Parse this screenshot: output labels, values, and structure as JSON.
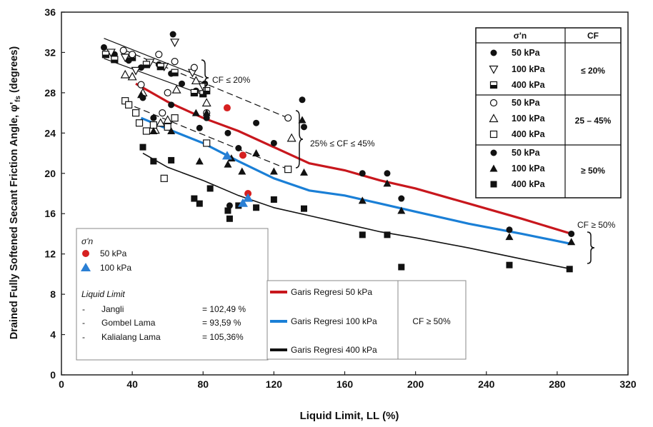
{
  "chart_data": {
    "type": "scatter",
    "title": "",
    "xlabel": "Liquid Limit, LL (%)",
    "ylabel_main": "Drained Fully Softened Secant Friction Angle, φ'",
    "ylabel_sub": "fs",
    "ylabel_unit": " (degrees)",
    "xlim": [
      0,
      320
    ],
    "ylim": [
      0,
      36
    ],
    "xticks": [
      0,
      40,
      80,
      120,
      160,
      200,
      240,
      280,
      320
    ],
    "yticks": [
      0,
      4,
      8,
      12,
      16,
      20,
      24,
      28,
      32,
      36
    ],
    "grid": false,
    "annotations": {
      "cf_le_20": "CF ≤ 20%",
      "cf_25_45": "25% ≤ CF ≤ 45%",
      "cf_ge_50": "CF ≥ 50%"
    },
    "legend_table": {
      "header_sigma": "σ'n",
      "header_cf": "CF",
      "rows": [
        {
          "marker": "circle-filled",
          "label": "50 kPa"
        },
        {
          "marker": "triangle-down-open",
          "label": "100 kPa"
        },
        {
          "marker": "square-half",
          "label": "400 kPa"
        },
        {
          "marker": "circle-open",
          "label": "50 kPa"
        },
        {
          "marker": "triangle-up-open",
          "label": "100 kPa"
        },
        {
          "marker": "square-open",
          "label": "400 kPa"
        },
        {
          "marker": "circle-filled",
          "label": "50 kPa"
        },
        {
          "marker": "triangle-up-filled",
          "label": "100 kPa"
        },
        {
          "marker": "square-filled",
          "label": "400 kPa"
        }
      ],
      "cf_groups": [
        "≤ 20%",
        "25 – 45%",
        "≥ 50%"
      ]
    },
    "legend_local": {
      "sigma_label": "σ'n",
      "items": [
        {
          "marker": "red-circle",
          "label": "50 kPa",
          "color": "#d62020"
        },
        {
          "marker": "blue-triangle",
          "label": "100 kPa",
          "color": "#2a7fd4"
        }
      ],
      "liquid_limit_title": "Liquid Limit",
      "samples": [
        {
          "dash": "-",
          "name": "Jangli",
          "value": "= 102,49 %"
        },
        {
          "dash": "-",
          "name": "Gombel Lama",
          "value": "= 93,59 %"
        },
        {
          "dash": "-",
          "name": "Kalialang Lama",
          "value": "= 105,36%"
        }
      ]
    },
    "legend_regression": {
      "items": [
        {
          "label": "Garis Regresi 50 kPa",
          "color": "#c8171d"
        },
        {
          "label": "Garis Regresi 100 kPa",
          "color": "#1a7fd6"
        },
        {
          "label": "Garis Regresi 400 kPa",
          "color": "#111111"
        }
      ],
      "cf_label": "CF ≥ 50%"
    },
    "series": [
      {
        "marker": "circle-filled",
        "color": "#111111",
        "points": [
          [
            24,
            32.5
          ],
          [
            30,
            31.8
          ],
          [
            38,
            31.2
          ],
          [
            45,
            30.5
          ],
          [
            55,
            30.8
          ],
          [
            62,
            29.9
          ],
          [
            68,
            28.9
          ],
          [
            76,
            28.2
          ],
          [
            81,
            28.9
          ],
          [
            63,
            33.8
          ]
        ]
      },
      {
        "marker": "triangle-down-open",
        "color": "#111111",
        "points": [
          [
            28,
            32.0
          ],
          [
            36,
            31.5
          ],
          [
            42,
            30.2
          ],
          [
            50,
            31.0
          ],
          [
            58,
            30.6
          ],
          [
            64,
            33.0
          ],
          [
            74,
            30.0
          ],
          [
            80,
            28.6
          ]
        ]
      },
      {
        "marker": "square-half",
        "color": "#111111",
        "points": [
          [
            25,
            31.8
          ],
          [
            30,
            31.3
          ],
          [
            40,
            31.5
          ],
          [
            48,
            30.8
          ],
          [
            56,
            30.6
          ],
          [
            64,
            30.0
          ],
          [
            75,
            28.0
          ],
          [
            80,
            27.9
          ],
          [
            82,
            28.2
          ]
        ]
      },
      {
        "marker": "circle-open",
        "color": "#111111",
        "points": [
          [
            35,
            32.2
          ],
          [
            40,
            31.8
          ],
          [
            45,
            28.8
          ],
          [
            55,
            31.8
          ],
          [
            57,
            26.0
          ],
          [
            60,
            28.0
          ],
          [
            64,
            31.1
          ],
          [
            75,
            30.5
          ],
          [
            82,
            26.0
          ],
          [
            128,
            25.5
          ]
        ]
      },
      {
        "marker": "triangle-up-open",
        "color": "#111111",
        "points": [
          [
            36,
            29.8
          ],
          [
            40,
            29.6
          ],
          [
            46,
            28.0
          ],
          [
            53,
            24.3
          ],
          [
            56,
            25.0
          ],
          [
            60,
            25.3
          ],
          [
            65,
            28.3
          ],
          [
            76,
            29.2
          ],
          [
            82,
            27.0
          ],
          [
            130,
            23.5
          ]
        ]
      },
      {
        "marker": "square-open",
        "color": "#111111",
        "points": [
          [
            36,
            27.2
          ],
          [
            38,
            26.8
          ],
          [
            42,
            26.0
          ],
          [
            44,
            25.0
          ],
          [
            48,
            24.2
          ],
          [
            52,
            24.8
          ],
          [
            60,
            24.6
          ],
          [
            64,
            25.5
          ],
          [
            58,
            19.5
          ],
          [
            82,
            23.0
          ],
          [
            128,
            20.4
          ]
        ]
      },
      {
        "marker": "circle-filled",
        "color": "#111111",
        "points": [
          [
            46,
            27.5
          ],
          [
            52,
            25.5
          ],
          [
            62,
            26.8
          ],
          [
            78,
            24.5
          ],
          [
            82,
            25.5
          ],
          [
            94,
            24.0
          ],
          [
            95,
            16.8
          ],
          [
            100,
            22.5
          ],
          [
            110,
            25.0
          ],
          [
            120,
            23.0
          ],
          [
            136,
            27.3
          ],
          [
            137,
            24.6
          ],
          [
            170,
            20.0
          ],
          [
            184,
            20.0
          ],
          [
            192,
            17.5
          ],
          [
            253,
            14.4
          ],
          [
            288,
            14.0
          ]
        ]
      },
      {
        "marker": "triangle-up-filled",
        "color": "#111111",
        "points": [
          [
            45,
            27.8
          ],
          [
            52,
            24.2
          ],
          [
            62,
            24.2
          ],
          [
            76,
            26.0
          ],
          [
            78,
            21.2
          ],
          [
            82,
            26.0
          ],
          [
            94,
            20.9
          ],
          [
            96,
            21.5
          ],
          [
            102,
            20.2
          ],
          [
            110,
            22.0
          ],
          [
            120,
            20.2
          ],
          [
            136,
            25.3
          ],
          [
            137,
            20.1
          ],
          [
            170,
            17.3
          ],
          [
            184,
            19.0
          ],
          [
            192,
            16.3
          ],
          [
            253,
            13.7
          ],
          [
            288,
            13.2
          ]
        ]
      },
      {
        "marker": "square-filled",
        "color": "#111111",
        "points": [
          [
            46,
            22.6
          ],
          [
            52,
            21.2
          ],
          [
            62,
            21.3
          ],
          [
            75,
            17.5
          ],
          [
            78,
            17.0
          ],
          [
            84,
            18.5
          ],
          [
            94,
            16.3
          ],
          [
            95,
            15.5
          ],
          [
            100,
            16.8
          ],
          [
            110,
            16.6
          ],
          [
            120,
            17.4
          ],
          [
            137,
            16.5
          ],
          [
            170,
            13.9
          ],
          [
            184,
            13.9
          ],
          [
            192,
            10.7
          ],
          [
            253,
            10.9
          ],
          [
            287,
            10.5
          ]
        ]
      },
      {
        "marker": "red-circle",
        "color": "#d62020",
        "points": [
          [
            93.59,
            26.5
          ],
          [
            102.49,
            21.8
          ],
          [
            105.36,
            18.0
          ]
        ]
      },
      {
        "marker": "blue-triangle",
        "color": "#2a7fd4",
        "points": [
          [
            93.59,
            21.8
          ],
          [
            102.49,
            17.1
          ],
          [
            105.36,
            17.6
          ]
        ]
      }
    ],
    "regression_lines": [
      {
        "label": "Garis Regresi 50 kPa",
        "color": "#c8171d",
        "points": [
          [
            42,
            28.9
          ],
          [
            60,
            27.1
          ],
          [
            80,
            25.5
          ],
          [
            100,
            24.2
          ],
          [
            120,
            22.6
          ],
          [
            140,
            21.0
          ],
          [
            160,
            20.3
          ],
          [
            180,
            19.3
          ],
          [
            200,
            18.5
          ],
          [
            230,
            17.0
          ],
          [
            260,
            15.5
          ],
          [
            288,
            14.0
          ]
        ]
      },
      {
        "label": "Garis Regresi 100 kPa",
        "color": "#1a7fd6",
        "points": [
          [
            45,
            25.5
          ],
          [
            60,
            24.4
          ],
          [
            80,
            23.0
          ],
          [
            100,
            21.2
          ],
          [
            120,
            19.5
          ],
          [
            140,
            18.3
          ],
          [
            160,
            17.8
          ],
          [
            180,
            17.0
          ],
          [
            200,
            16.2
          ],
          [
            230,
            15.0
          ],
          [
            260,
            14.0
          ],
          [
            288,
            13.0
          ]
        ]
      },
      {
        "label": "Garis Regresi 400 kPa",
        "color": "#111111",
        "points": [
          [
            46,
            22.0
          ],
          [
            60,
            20.6
          ],
          [
            80,
            19.3
          ],
          [
            100,
            17.8
          ],
          [
            120,
            16.6
          ],
          [
            140,
            15.8
          ],
          [
            160,
            15.0
          ],
          [
            180,
            14.2
          ],
          [
            200,
            13.6
          ],
          [
            230,
            12.6
          ],
          [
            260,
            11.5
          ],
          [
            288,
            10.5
          ]
        ]
      },
      {
        "label": "CF ≤ 20% bound upper",
        "color": "#111111",
        "points": [
          [
            24,
            33.4
          ],
          [
            80,
            29.5
          ]
        ]
      },
      {
        "label": "CF ≤ 20% bound lower",
        "color": "#111111",
        "points": [
          [
            24,
            31.4
          ],
          [
            80,
            27.8
          ]
        ]
      },
      {
        "label": "25-45% bound upper",
        "color": "#111111",
        "points": [
          [
            36,
            32.2
          ],
          [
            128,
            25.5
          ]
        ]
      },
      {
        "label": "25-45% bound lower",
        "color": "#111111",
        "points": [
          [
            36,
            27.0
          ],
          [
            128,
            20.4
          ]
        ]
      }
    ]
  }
}
